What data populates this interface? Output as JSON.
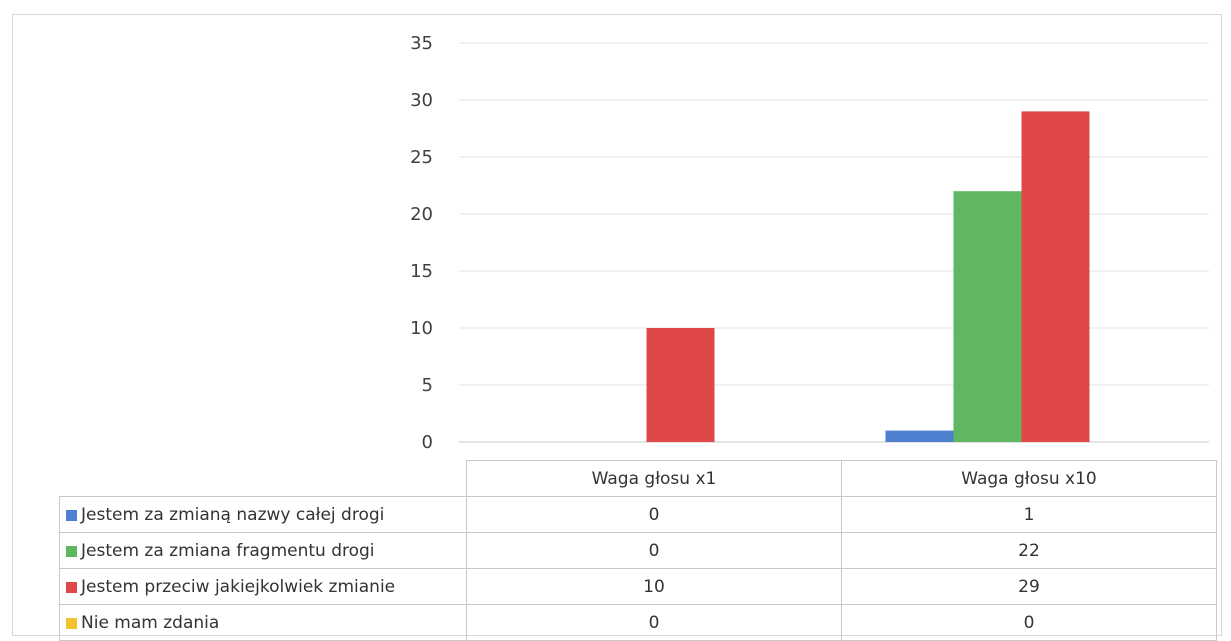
{
  "chart_data": {
    "type": "bar",
    "categories": [
      "Waga głosu x1",
      "Waga głosu x10"
    ],
    "series": [
      {
        "name": "Jestem za zmianą nazwy całej drogi",
        "color": "#4f7fcf",
        "values": [
          0,
          1
        ]
      },
      {
        "name": "Jestem za zmiana fragmentu drogi",
        "color": "#5fb761",
        "values": [
          0,
          22
        ]
      },
      {
        "name": "Jestem przeciw jakiejkolwiek zmianie",
        "color": "#e04848",
        "values": [
          10,
          29
        ]
      },
      {
        "name": "Nie mam zdania",
        "color": "#f2c12e",
        "values": [
          0,
          0
        ]
      }
    ],
    "ylim": [
      0,
      35
    ],
    "yticks": [
      0,
      5,
      10,
      15,
      20,
      25,
      30,
      35
    ],
    "grid": true,
    "legend": "data table below chart"
  }
}
